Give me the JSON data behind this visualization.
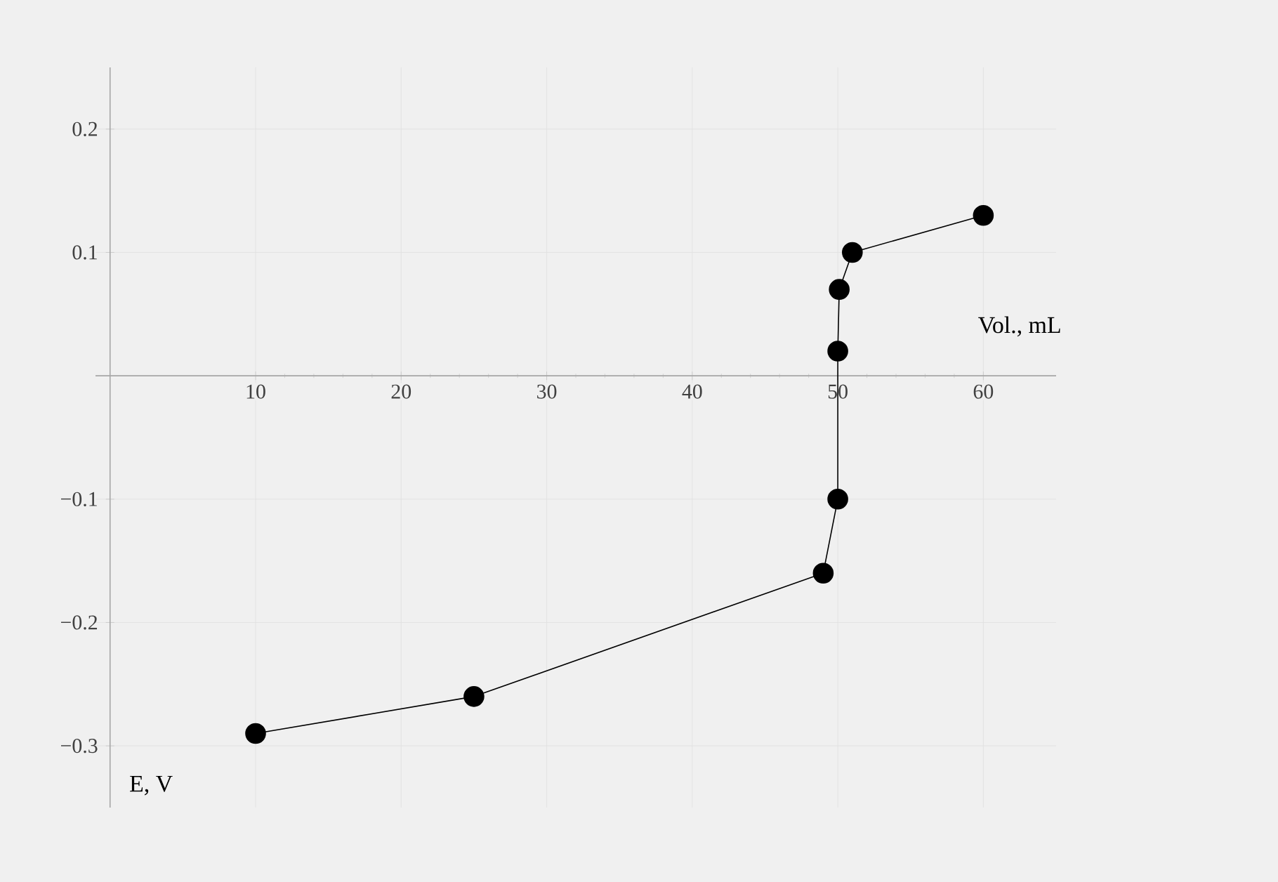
{
  "chart_data": {
    "type": "line",
    "xlabel": "Vol., mL",
    "ylabel": "E, V",
    "x": [
      10,
      25,
      49,
      50,
      50,
      50.1,
      51,
      60
    ],
    "values": [
      -0.29,
      -0.26,
      -0.16,
      -0.1,
      0.02,
      0.07,
      0.1,
      0.13
    ],
    "color": "#000000",
    "marker": "circle",
    "line_style": "solid",
    "grid": true,
    "xlim": [
      -1,
      65
    ],
    "ylim": [
      -0.35,
      0.25
    ],
    "xticks": [
      10,
      20,
      30,
      40,
      50,
      60
    ],
    "yticks": [
      {
        "value": -0.3,
        "label": "−0.3"
      },
      {
        "value": -0.2,
        "label": "−0.2"
      },
      {
        "value": -0.1,
        "label": "−0.1"
      },
      0.1,
      0.2
    ]
  }
}
